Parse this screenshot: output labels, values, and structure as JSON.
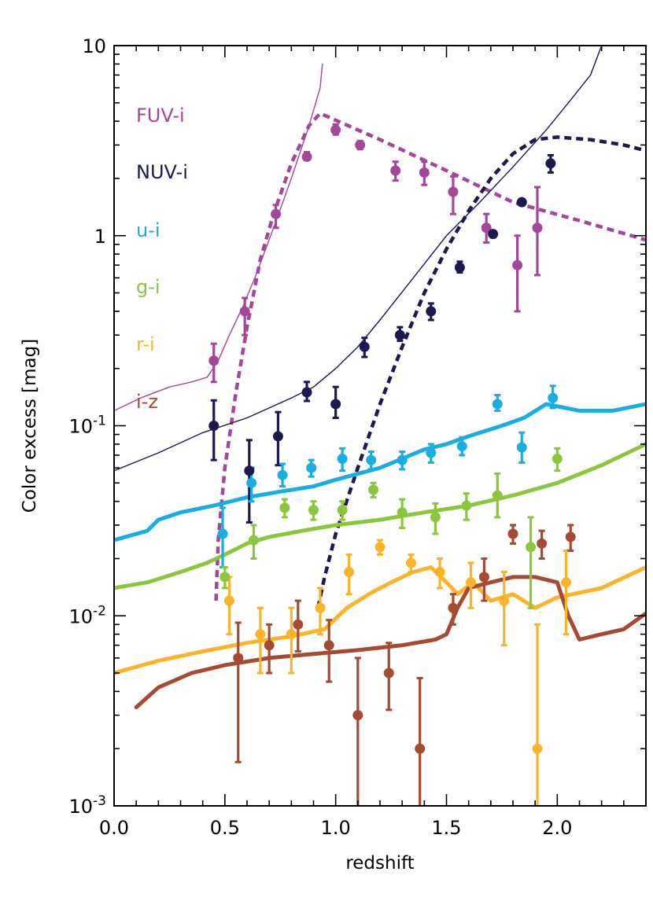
{
  "chart_data": {
    "type": "scatter",
    "title": "",
    "xlabel": "redshift",
    "ylabel": "Color excess [mag]",
    "xlim": [
      0.0,
      2.4
    ],
    "ylim": [
      0.001,
      10
    ],
    "yscale": "log",
    "grid": false,
    "legend_position": "left",
    "x_major_ticks": [
      0.0,
      0.5,
      1.0,
      1.5,
      2.0
    ],
    "x_tick_labels": [
      "0.0",
      "0.5",
      "1.0",
      "1.5",
      "2.0"
    ],
    "y_tick_labels": [
      {
        "base": "10",
        "exp": "-3",
        "value": 0.001
      },
      {
        "base": "10",
        "exp": "-2",
        "value": 0.01
      },
      {
        "base": "10",
        "exp": "-1",
        "value": 0.1
      },
      {
        "base": "1",
        "exp": "",
        "value": 1
      },
      {
        "base": "10",
        "exp": "",
        "value": 10
      }
    ],
    "series": [
      {
        "name": "FUV-i",
        "color": "#a2479a",
        "points": [
          [
            0.45,
            0.22
          ],
          [
            0.59,
            0.4
          ],
          [
            0.73,
            1.3
          ],
          [
            0.87,
            2.6
          ],
          [
            1.0,
            3.6
          ],
          [
            1.11,
            3.0
          ],
          [
            1.27,
            2.2
          ],
          [
            1.4,
            2.15
          ],
          [
            1.53,
            1.7
          ],
          [
            1.68,
            1.1
          ],
          [
            1.82,
            0.7
          ],
          [
            1.91,
            1.1
          ]
        ],
        "err_lo": [
          0.17,
          0.3,
          1.1,
          2.5,
          3.4,
          2.85,
          1.95,
          1.85,
          1.3,
          0.92,
          0.4,
          0.62
        ],
        "err_hi": [
          0.27,
          0.47,
          1.45,
          2.75,
          3.85,
          3.15,
          2.45,
          2.45,
          2.05,
          1.3,
          1.0,
          1.8
        ],
        "model_solid": [
          [
            0.0,
            0.12
          ],
          [
            0.12,
            0.14
          ],
          [
            0.25,
            0.16
          ],
          [
            0.35,
            0.17
          ],
          [
            0.42,
            0.18
          ],
          [
            0.47,
            0.22
          ],
          [
            0.52,
            0.3
          ],
          [
            0.58,
            0.42
          ],
          [
            0.64,
            0.62
          ],
          [
            0.72,
            1.1
          ],
          [
            0.8,
            2.0
          ],
          [
            0.88,
            3.8
          ],
          [
            0.93,
            6.0
          ],
          [
            0.94,
            8.0
          ]
        ],
        "model_dashed": [
          [
            0.46,
            0.012
          ],
          [
            0.47,
            0.025
          ],
          [
            0.5,
            0.06
          ],
          [
            0.55,
            0.15
          ],
          [
            0.6,
            0.33
          ],
          [
            0.66,
            0.75
          ],
          [
            0.72,
            1.3
          ],
          [
            0.8,
            2.4
          ],
          [
            0.88,
            3.8
          ],
          [
            0.93,
            4.4
          ],
          [
            1.2,
            3.2
          ],
          [
            1.5,
            2.2
          ],
          [
            1.8,
            1.5
          ],
          [
            2.1,
            1.2
          ],
          [
            2.4,
            0.95
          ]
        ]
      },
      {
        "name": "NUV-i",
        "color": "#1c1850",
        "points": [
          [
            0.45,
            0.1
          ],
          [
            0.61,
            0.058
          ],
          [
            0.74,
            0.088
          ],
          [
            0.87,
            0.15
          ],
          [
            1.0,
            0.13
          ],
          [
            1.13,
            0.26
          ],
          [
            1.29,
            0.3
          ],
          [
            1.43,
            0.4
          ],
          [
            1.56,
            0.68
          ],
          [
            1.71,
            1.02
          ],
          [
            1.84,
            1.5
          ],
          [
            1.97,
            2.4
          ]
        ],
        "err_lo": [
          0.066,
          0.031,
          0.062,
          0.135,
          0.11,
          0.23,
          0.28,
          0.36,
          0.64,
          0.98,
          1.45,
          2.15
        ],
        "err_hi": [
          0.136,
          0.084,
          0.118,
          0.17,
          0.16,
          0.29,
          0.33,
          0.44,
          0.73,
          1.06,
          1.55,
          2.65
        ],
        "model_solid": [
          [
            0.0,
            0.058
          ],
          [
            0.2,
            0.072
          ],
          [
            0.4,
            0.092
          ],
          [
            0.6,
            0.11
          ],
          [
            0.8,
            0.14
          ],
          [
            0.9,
            0.16
          ],
          [
            1.0,
            0.2
          ],
          [
            1.1,
            0.26
          ],
          [
            1.2,
            0.36
          ],
          [
            1.35,
            0.6
          ],
          [
            1.5,
            1.0
          ],
          [
            1.65,
            1.5
          ],
          [
            1.8,
            2.3
          ],
          [
            1.95,
            3.6
          ],
          [
            2.05,
            5.0
          ],
          [
            2.15,
            7.0
          ],
          [
            2.2,
            10.0
          ]
        ],
        "model_dashed": [
          [
            0.92,
            0.011
          ],
          [
            0.95,
            0.016
          ],
          [
            1.0,
            0.027
          ],
          [
            1.1,
            0.06
          ],
          [
            1.2,
            0.13
          ],
          [
            1.3,
            0.26
          ],
          [
            1.4,
            0.5
          ],
          [
            1.5,
            0.85
          ],
          [
            1.6,
            1.35
          ],
          [
            1.7,
            2.0
          ],
          [
            1.8,
            2.7
          ],
          [
            1.9,
            3.2
          ],
          [
            2.0,
            3.3
          ],
          [
            2.15,
            3.2
          ],
          [
            2.3,
            3.0
          ],
          [
            2.4,
            2.8
          ]
        ]
      },
      {
        "name": "u-i",
        "color": "#19ade2",
        "points": [
          [
            0.49,
            0.027
          ],
          [
            0.62,
            0.05
          ],
          [
            0.76,
            0.055
          ],
          [
            0.89,
            0.06
          ],
          [
            1.03,
            0.067
          ],
          [
            1.16,
            0.066
          ],
          [
            1.3,
            0.066
          ],
          [
            1.43,
            0.072
          ],
          [
            1.57,
            0.078
          ],
          [
            1.73,
            0.13
          ],
          [
            1.84,
            0.077
          ],
          [
            1.98,
            0.14
          ]
        ],
        "err_lo": [
          0.018,
          0.04,
          0.048,
          0.054,
          0.058,
          0.059,
          0.059,
          0.064,
          0.07,
          0.12,
          0.064,
          0.124
        ],
        "err_hi": [
          0.037,
          0.06,
          0.063,
          0.066,
          0.076,
          0.073,
          0.073,
          0.08,
          0.087,
          0.145,
          0.092,
          0.162
        ],
        "model_solid": [
          [
            0.0,
            0.025
          ],
          [
            0.15,
            0.028
          ],
          [
            0.2,
            0.032
          ],
          [
            0.3,
            0.035
          ],
          [
            0.45,
            0.038
          ],
          [
            0.6,
            0.042
          ],
          [
            0.75,
            0.045
          ],
          [
            0.9,
            0.048
          ],
          [
            1.0,
            0.052
          ],
          [
            1.2,
            0.06
          ],
          [
            1.4,
            0.075
          ],
          [
            1.5,
            0.08
          ],
          [
            1.6,
            0.088
          ],
          [
            1.75,
            0.1
          ],
          [
            1.85,
            0.11
          ],
          [
            1.95,
            0.13
          ],
          [
            2.1,
            0.12
          ],
          [
            2.25,
            0.12
          ],
          [
            2.4,
            0.13
          ]
        ]
      },
      {
        "name": "g-i",
        "color": "#8cc63e",
        "points": [
          [
            0.5,
            0.016
          ],
          [
            0.63,
            0.025
          ],
          [
            0.77,
            0.037
          ],
          [
            0.9,
            0.036
          ],
          [
            1.03,
            0.036
          ],
          [
            1.17,
            0.046
          ],
          [
            1.3,
            0.035
          ],
          [
            1.45,
            0.033
          ],
          [
            1.59,
            0.038
          ],
          [
            1.73,
            0.043
          ],
          [
            1.88,
            0.023
          ],
          [
            2.0,
            0.067
          ]
        ],
        "err_lo": [
          0.014,
          0.02,
          0.033,
          0.032,
          0.032,
          0.042,
          0.029,
          0.027,
          0.032,
          0.033,
          0.011,
          0.058
        ],
        "err_hi": [
          0.018,
          0.03,
          0.041,
          0.04,
          0.04,
          0.05,
          0.041,
          0.039,
          0.044,
          0.056,
          0.033,
          0.076
        ],
        "model_solid": [
          [
            0.0,
            0.014
          ],
          [
            0.15,
            0.015
          ],
          [
            0.3,
            0.017
          ],
          [
            0.42,
            0.019
          ],
          [
            0.5,
            0.021
          ],
          [
            0.6,
            0.024
          ],
          [
            0.7,
            0.026
          ],
          [
            0.85,
            0.028
          ],
          [
            1.0,
            0.03
          ],
          [
            1.2,
            0.032
          ],
          [
            1.4,
            0.035
          ],
          [
            1.6,
            0.038
          ],
          [
            1.8,
            0.043
          ],
          [
            2.0,
            0.05
          ],
          [
            2.2,
            0.062
          ],
          [
            2.4,
            0.08
          ]
        ]
      },
      {
        "name": "r-i",
        "color": "#fbb42a",
        "points": [
          [
            0.52,
            0.012
          ],
          [
            0.66,
            0.008
          ],
          [
            0.8,
            0.008
          ],
          [
            0.93,
            0.011
          ],
          [
            1.06,
            0.017
          ],
          [
            1.2,
            0.023
          ],
          [
            1.34,
            0.019
          ],
          [
            1.47,
            0.017
          ],
          [
            1.61,
            0.015
          ],
          [
            1.76,
            0.012
          ],
          [
            1.91,
            0.002
          ],
          [
            2.04,
            0.015
          ]
        ],
        "err_lo": [
          0.008,
          0.005,
          0.005,
          0.008,
          0.013,
          0.021,
          0.017,
          0.014,
          0.011,
          0.007,
          0.0001,
          0.008
        ],
        "err_hi": [
          0.016,
          0.011,
          0.011,
          0.014,
          0.021,
          0.025,
          0.021,
          0.02,
          0.019,
          0.017,
          0.009,
          0.022
        ],
        "model_solid": [
          [
            0.0,
            0.005
          ],
          [
            0.2,
            0.0058
          ],
          [
            0.4,
            0.0065
          ],
          [
            0.6,
            0.0072
          ],
          [
            0.8,
            0.0078
          ],
          [
            0.95,
            0.0085
          ],
          [
            1.05,
            0.011
          ],
          [
            1.15,
            0.013
          ],
          [
            1.25,
            0.015
          ],
          [
            1.35,
            0.017
          ],
          [
            1.43,
            0.018
          ],
          [
            1.5,
            0.015
          ],
          [
            1.55,
            0.013
          ],
          [
            1.62,
            0.015
          ],
          [
            1.7,
            0.012
          ],
          [
            1.8,
            0.013
          ],
          [
            1.9,
            0.011
          ],
          [
            2.0,
            0.0125
          ],
          [
            2.2,
            0.014
          ],
          [
            2.4,
            0.018
          ]
        ]
      },
      {
        "name": "i-z",
        "color": "#a64b33",
        "points": [
          [
            0.56,
            0.006
          ],
          [
            0.7,
            0.007
          ],
          [
            0.83,
            0.009
          ],
          [
            0.97,
            0.007
          ],
          [
            1.1,
            0.003
          ],
          [
            1.24,
            0.005
          ],
          [
            1.38,
            0.002
          ],
          [
            1.53,
            0.011
          ],
          [
            1.67,
            0.016
          ],
          [
            1.8,
            0.027
          ],
          [
            1.93,
            0.024
          ],
          [
            2.06,
            0.026
          ]
        ],
        "err_lo": [
          0.0017,
          0.005,
          0.0065,
          0.0045,
          0.0001,
          0.0032,
          0.0001,
          0.009,
          0.012,
          0.024,
          0.02,
          0.022
        ],
        "err_hi": [
          0.0092,
          0.009,
          0.012,
          0.0095,
          0.006,
          0.0072,
          0.0047,
          0.013,
          0.02,
          0.03,
          0.028,
          0.03
        ],
        "model_solid": [
          [
            0.1,
            0.0033
          ],
          [
            0.2,
            0.0042
          ],
          [
            0.35,
            0.005
          ],
          [
            0.5,
            0.0055
          ],
          [
            0.7,
            0.006
          ],
          [
            0.9,
            0.0063
          ],
          [
            1.1,
            0.0066
          ],
          [
            1.3,
            0.007
          ],
          [
            1.45,
            0.0075
          ],
          [
            1.5,
            0.008
          ],
          [
            1.55,
            0.011
          ],
          [
            1.6,
            0.014
          ],
          [
            1.7,
            0.015
          ],
          [
            1.8,
            0.016
          ],
          [
            1.9,
            0.016
          ],
          [
            2.0,
            0.015
          ],
          [
            2.05,
            0.01
          ],
          [
            2.1,
            0.0075
          ],
          [
            2.2,
            0.008
          ],
          [
            2.3,
            0.0085
          ],
          [
            2.4,
            0.0103
          ]
        ]
      }
    ]
  }
}
